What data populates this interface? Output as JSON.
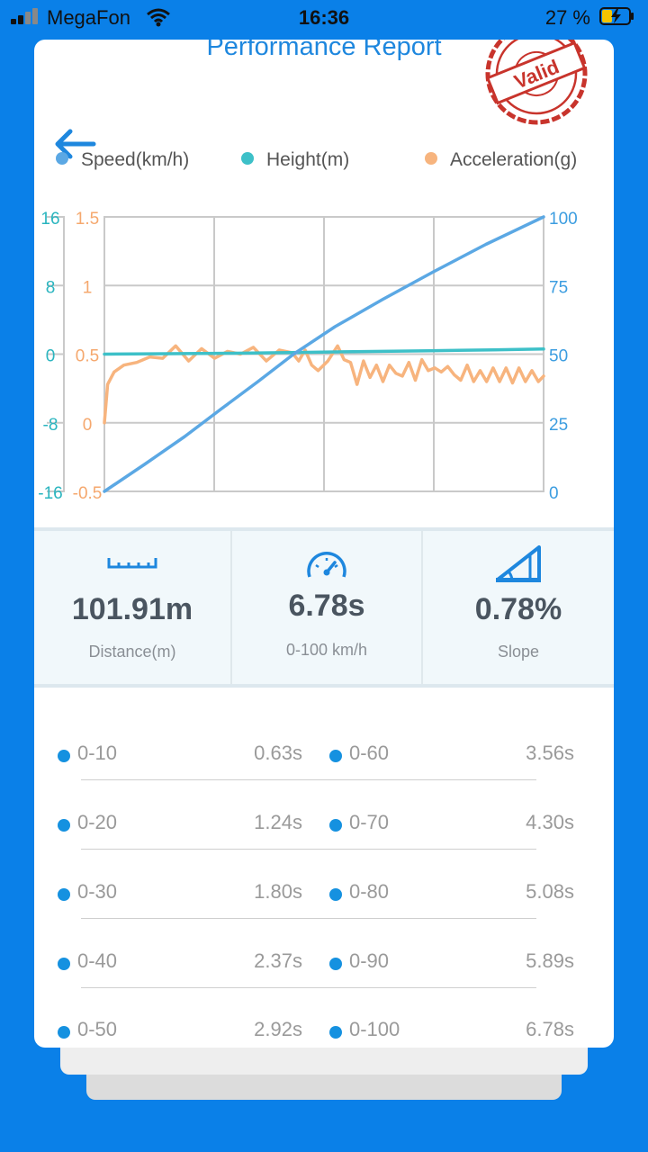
{
  "status_bar": {
    "carrier": "MegaFon",
    "time": "16:36",
    "battery_pct": "27 %"
  },
  "report": {
    "title": "Performance Report",
    "stamp_text": "Valid"
  },
  "legend": [
    {
      "label": "Speed(km/h)",
      "color": "#5ba8e4"
    },
    {
      "label": "Height(m)",
      "color": "#3dc0c8"
    },
    {
      "label": "Acceleration(g)",
      "color": "#f7b47e"
    }
  ],
  "chart_data": {
    "type": "line",
    "left_axis_height_ticks": [
      "16",
      "8",
      "0",
      "-8",
      "-16"
    ],
    "left_axis_accel_ticks": [
      "1.5",
      "1",
      "0.5",
      "0",
      "-0.5"
    ],
    "right_axis_speed_ticks": [
      "100",
      "75",
      "50",
      "25",
      "0"
    ],
    "x_range": [
      0,
      6.78
    ],
    "series": [
      {
        "name": "Speed(km/h)",
        "axis": "speed",
        "color": "#5ba8e4",
        "x": [
          0,
          0.63,
          1.24,
          1.8,
          2.37,
          2.92,
          3.56,
          4.3,
          5.08,
          5.89,
          6.78
        ],
        "y": [
          0,
          10,
          20,
          30,
          40,
          50,
          60,
          70,
          80,
          90,
          100
        ]
      },
      {
        "name": "Height(m)",
        "axis": "height",
        "color": "#3dc0c8",
        "x": [
          0,
          1,
          2,
          3,
          4,
          5,
          6,
          6.78
        ],
        "y": [
          0.0,
          0.05,
          0.1,
          0.2,
          0.3,
          0.4,
          0.5,
          0.6
        ]
      },
      {
        "name": "Acceleration(g)",
        "axis": "accel",
        "color": "#f7b47e",
        "x": [
          0,
          0.05,
          0.15,
          0.3,
          0.5,
          0.7,
          0.9,
          1.1,
          1.3,
          1.5,
          1.7,
          1.9,
          2.1,
          2.3,
          2.5,
          2.7,
          2.9,
          3.0,
          3.1,
          3.2,
          3.3,
          3.45,
          3.6,
          3.7,
          3.8,
          3.9,
          4.0,
          4.1,
          4.2,
          4.3,
          4.4,
          4.5,
          4.6,
          4.7,
          4.8,
          4.9,
          5.0,
          5.1,
          5.2,
          5.3,
          5.4,
          5.5,
          5.6,
          5.7,
          5.8,
          5.9,
          6.0,
          6.1,
          6.2,
          6.3,
          6.4,
          6.5,
          6.6,
          6.7,
          6.78
        ],
        "y": [
          0.0,
          0.28,
          0.37,
          0.42,
          0.44,
          0.48,
          0.47,
          0.56,
          0.45,
          0.54,
          0.47,
          0.52,
          0.5,
          0.55,
          0.45,
          0.53,
          0.51,
          0.45,
          0.53,
          0.42,
          0.38,
          0.45,
          0.56,
          0.46,
          0.44,
          0.28,
          0.45,
          0.33,
          0.42,
          0.3,
          0.42,
          0.36,
          0.34,
          0.44,
          0.31,
          0.46,
          0.38,
          0.4,
          0.37,
          0.41,
          0.35,
          0.31,
          0.42,
          0.3,
          0.38,
          0.3,
          0.4,
          0.3,
          0.4,
          0.29,
          0.4,
          0.3,
          0.38,
          0.3,
          0.34
        ]
      }
    ]
  },
  "stats": [
    {
      "value": "101.91m",
      "label": "Distance(m)",
      "icon": "ruler-icon"
    },
    {
      "value": "6.78s",
      "label": "0-100 km/h",
      "icon": "speedometer-icon"
    },
    {
      "value": "0.78%",
      "label": "Slope",
      "icon": "slope-icon"
    }
  ],
  "splits": [
    {
      "left_label": "0-10",
      "left_time": "0.63s",
      "right_label": "0-60",
      "right_time": "3.56s"
    },
    {
      "left_label": "0-20",
      "left_time": "1.24s",
      "right_label": "0-70",
      "right_time": "4.30s"
    },
    {
      "left_label": "0-30",
      "left_time": "1.80s",
      "right_label": "0-80",
      "right_time": "5.08s"
    },
    {
      "left_label": "0-40",
      "left_time": "2.37s",
      "right_label": "0-90",
      "right_time": "5.89s"
    },
    {
      "left_label": "0-50",
      "left_time": "2.92s",
      "right_label": "0-100",
      "right_time": "6.78s"
    }
  ]
}
